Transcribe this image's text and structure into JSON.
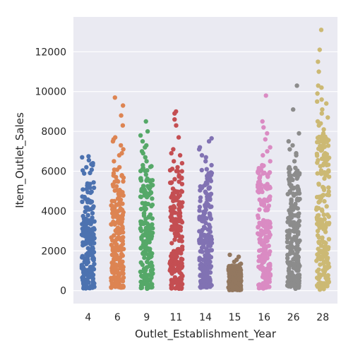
{
  "chart_data": {
    "type": "scatter",
    "style": "categorical strip plot (jittered)",
    "xlabel": "Outlet_Establishment_Year",
    "ylabel": "Item_Outlet_Sales",
    "categories": [
      "4",
      "6",
      "9",
      "11",
      "14",
      "15",
      "16",
      "26",
      "28"
    ],
    "colors": [
      "#4c72b0",
      "#dd8452",
      "#55a868",
      "#c44e52",
      "#8172b3",
      "#937860",
      "#da8bc3",
      "#8c8c8c",
      "#ccb974"
    ],
    "yticks": [
      0,
      2000,
      4000,
      6000,
      8000,
      10000,
      12000
    ],
    "ylim": [
      -650,
      13750
    ],
    "grid": true,
    "background": "#eaeaf2",
    "series": [
      {
        "category": "4",
        "min": 100,
        "max": 6800,
        "bulk_upper": 4600,
        "highlights": [
          6750,
          6700,
          6550,
          6400,
          6350,
          6300,
          6200
        ]
      },
      {
        "category": "6",
        "min": 150,
        "max": 9700,
        "bulk_upper": 5000,
        "highlights": [
          9700,
          9300,
          8800,
          8300,
          7700,
          7600,
          7500,
          7300,
          7100,
          6900,
          6800,
          6500,
          6200
        ]
      },
      {
        "category": "9",
        "min": 100,
        "max": 8500,
        "bulk_upper": 5500,
        "highlights": [
          8500,
          8000,
          7800,
          7500,
          7300,
          7200,
          7000,
          6900,
          6700,
          6500,
          6300
        ]
      },
      {
        "category": "11",
        "min": 100,
        "max": 9000,
        "bulk_upper": 5000,
        "highlights": [
          9000,
          8900,
          8600,
          8300,
          7700,
          7100,
          6900,
          6800,
          6500,
          6400,
          6200
        ]
      },
      {
        "category": "14",
        "min": 150,
        "max": 7650,
        "bulk_upper": 5300,
        "highlights": [
          7650,
          7500,
          7200,
          7100,
          6800,
          6700,
          6500,
          6300,
          6100
        ]
      },
      {
        "category": "15",
        "min": 30,
        "max": 1800,
        "bulk_upper": 1100,
        "highlights": [
          1800,
          1700,
          1550,
          1450,
          1350,
          1300,
          1250
        ]
      },
      {
        "category": "16",
        "min": 100,
        "max": 9800,
        "bulk_upper": 5500,
        "highlights": [
          9800,
          8500,
          8200,
          7900,
          7600,
          7200,
          7000,
          6800,
          6500,
          6300
        ]
      },
      {
        "category": "26",
        "min": 100,
        "max": 10300,
        "bulk_upper": 5500,
        "highlights": [
          10300,
          9100,
          7900,
          7500,
          7300,
          7100,
          6900,
          6800,
          6500,
          6200
        ]
      },
      {
        "category": "28",
        "min": 50,
        "max": 13100,
        "bulk_upper": 7500,
        "highlights": [
          13100,
          12100,
          11500,
          11000,
          10300,
          10200,
          9900,
          9600,
          9500,
          9400,
          9100,
          8900,
          8700,
          8500,
          8400,
          8300,
          8100,
          7900,
          7800
        ]
      }
    ]
  }
}
